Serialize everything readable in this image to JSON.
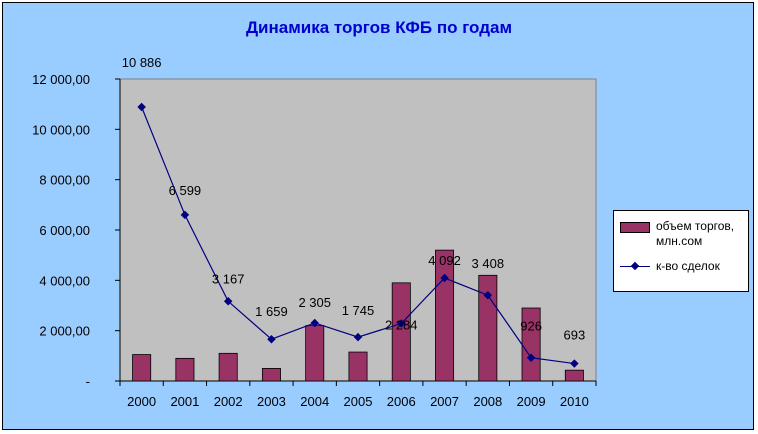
{
  "chart_data": {
    "type": "bar+line",
    "title": "Динамика торгов КФБ по годам",
    "categories": [
      "2000",
      "2001",
      "2002",
      "2003",
      "2004",
      "2005",
      "2006",
      "2007",
      "2008",
      "2009",
      "2010"
    ],
    "y_ticks": [
      "-",
      "2 000,00",
      "4 000,00",
      "6 000,00",
      "8 000,00",
      "10 000,00",
      "12 000,00"
    ],
    "ylim": [
      0,
      12000
    ],
    "grid": false,
    "legend_position": "right",
    "series": [
      {
        "name": "объем торгов, млн.сом",
        "type": "bar",
        "color": "#993366",
        "values": [
          1050,
          900,
          1100,
          500,
          2200,
          1150,
          3900,
          5200,
          4200,
          2900,
          430
        ]
      },
      {
        "name": "к-во сделок",
        "type": "line",
        "color": "#000080",
        "values": [
          10886,
          6599,
          3167,
          1659,
          2305,
          1745,
          2284,
          4092,
          3408,
          926,
          693
        ],
        "labels": [
          "10 886",
          "6 599",
          "3 167",
          "1 659",
          "2 305",
          "1 745",
          "2 284",
          "4 092",
          "3 408",
          "926",
          "693"
        ]
      }
    ]
  }
}
